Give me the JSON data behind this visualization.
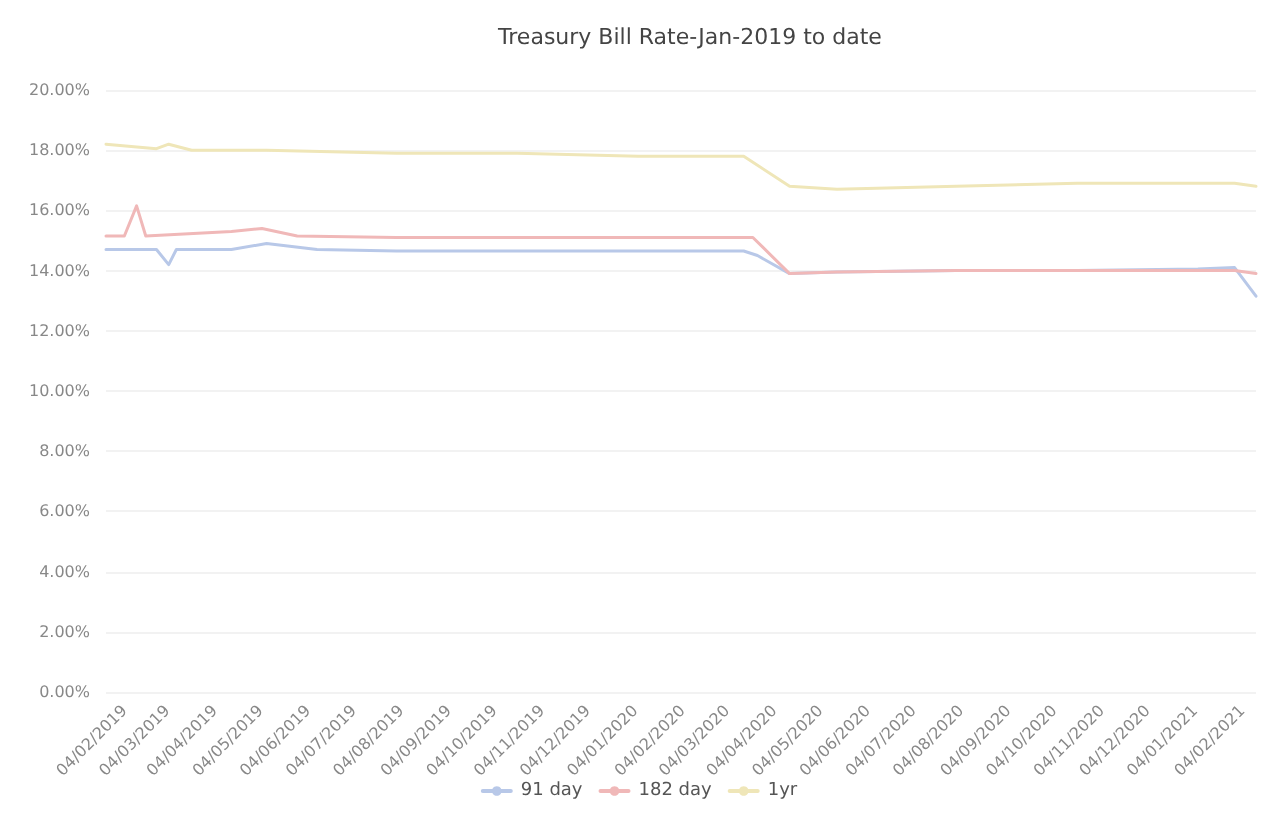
{
  "chart_data": {
    "type": "line",
    "title": "Treasury Bill Rate-Jan-2019 to date",
    "xlim": [
      "2019-01-23",
      "2021-02-13"
    ],
    "xticks": [
      {
        "value": "2019-02-04",
        "label": "04/02/2019"
      },
      {
        "value": "2019-03-04",
        "label": "04/03/2019"
      },
      {
        "value": "2019-04-04",
        "label": "04/04/2019"
      },
      {
        "value": "2019-05-04",
        "label": "04/05/2019"
      },
      {
        "value": "2019-06-04",
        "label": "04/06/2019"
      },
      {
        "value": "2019-07-04",
        "label": "04/07/2019"
      },
      {
        "value": "2019-08-04",
        "label": "04/08/2019"
      },
      {
        "value": "2019-09-04",
        "label": "04/09/2019"
      },
      {
        "value": "2019-10-04",
        "label": "04/10/2019"
      },
      {
        "value": "2019-11-04",
        "label": "04/11/2019"
      },
      {
        "value": "2019-12-04",
        "label": "04/12/2019"
      },
      {
        "value": "2020-01-04",
        "label": "04/01/2020"
      },
      {
        "value": "2020-02-04",
        "label": "04/02/2020"
      },
      {
        "value": "2020-03-04",
        "label": "04/03/2020"
      },
      {
        "value": "2020-04-04",
        "label": "04/04/2020"
      },
      {
        "value": "2020-05-04",
        "label": "04/05/2020"
      },
      {
        "value": "2020-06-04",
        "label": "04/06/2020"
      },
      {
        "value": "2020-07-04",
        "label": "04/07/2020"
      },
      {
        "value": "2020-08-04",
        "label": "04/08/2020"
      },
      {
        "value": "2020-09-04",
        "label": "04/09/2020"
      },
      {
        "value": "2020-10-04",
        "label": "04/10/2020"
      },
      {
        "value": "2020-11-04",
        "label": "04/11/2020"
      },
      {
        "value": "2020-12-04",
        "label": "04/12/2020"
      },
      {
        "value": "2021-01-04",
        "label": "04/01/2021"
      },
      {
        "value": "2021-02-04",
        "label": "04/02/2021"
      }
    ],
    "ylim": [
      0,
      20
    ],
    "yticks": [
      {
        "value": 0,
        "label": "0.00%"
      },
      {
        "value": 2,
        "label": "2.00%"
      },
      {
        "value": 4,
        "label": "4.00%"
      },
      {
        "value": 6,
        "label": "6.00%"
      },
      {
        "value": 8,
        "label": "8.00%"
      },
      {
        "value": 10,
        "label": "10.00%"
      },
      {
        "value": 12,
        "label": "12.00%"
      },
      {
        "value": 14,
        "label": "14.00%"
      },
      {
        "value": 16,
        "label": "16.00%"
      },
      {
        "value": 18,
        "label": "18.00%"
      },
      {
        "value": 20,
        "label": "20.00%"
      }
    ],
    "grid": "y",
    "legend": "bottom",
    "marker": "none",
    "line_style": "solid",
    "series": [
      {
        "name": "91 day",
        "color": "#b8c8e8",
        "x": [
          "2019-01-23",
          "2019-02-25",
          "2019-03-05",
          "2019-03-10",
          "2019-04-15",
          "2019-05-08",
          "2019-06-10",
          "2019-08-01",
          "2019-10-19",
          "2020-01-06",
          "2020-03-15",
          "2020-03-24",
          "2020-04-14",
          "2020-05-15",
          "2020-08-01",
          "2020-10-19",
          "2021-01-06",
          "2021-01-30",
          "2021-02-13"
        ],
        "values": [
          14.7,
          14.7,
          14.2,
          14.7,
          14.7,
          14.9,
          14.7,
          14.65,
          14.65,
          14.65,
          14.65,
          14.5,
          13.9,
          13.95,
          14.0,
          14.0,
          14.05,
          14.1,
          13.15
        ]
      },
      {
        "name": "182 day",
        "color": "#f0b8b8",
        "x": [
          "2019-01-23",
          "2019-02-04",
          "2019-02-12",
          "2019-02-18",
          "2019-04-15",
          "2019-05-05",
          "2019-05-28",
          "2019-08-01",
          "2019-10-19",
          "2020-01-06",
          "2020-03-21",
          "2020-04-14",
          "2020-05-15",
          "2020-08-01",
          "2020-10-19",
          "2021-01-06",
          "2021-01-30",
          "2021-02-13"
        ],
        "values": [
          15.15,
          15.15,
          16.15,
          15.15,
          15.3,
          15.4,
          15.15,
          15.1,
          15.1,
          15.1,
          15.1,
          13.9,
          13.95,
          14.0,
          14.0,
          14.0,
          14.0,
          13.9
        ]
      },
      {
        "name": "1yr",
        "color": "#efe6b8",
        "x": [
          "2019-01-23",
          "2019-02-25",
          "2019-03-05",
          "2019-03-20",
          "2019-05-08",
          "2019-08-01",
          "2019-10-19",
          "2020-01-06",
          "2020-03-15",
          "2020-04-14",
          "2020-05-15",
          "2020-08-01",
          "2020-10-19",
          "2021-01-06",
          "2021-01-30",
          "2021-02-13"
        ],
        "values": [
          18.2,
          18.05,
          18.2,
          18.0,
          18.0,
          17.9,
          17.9,
          17.8,
          17.8,
          16.8,
          16.7,
          16.8,
          16.9,
          16.9,
          16.9,
          16.8
        ]
      }
    ]
  }
}
